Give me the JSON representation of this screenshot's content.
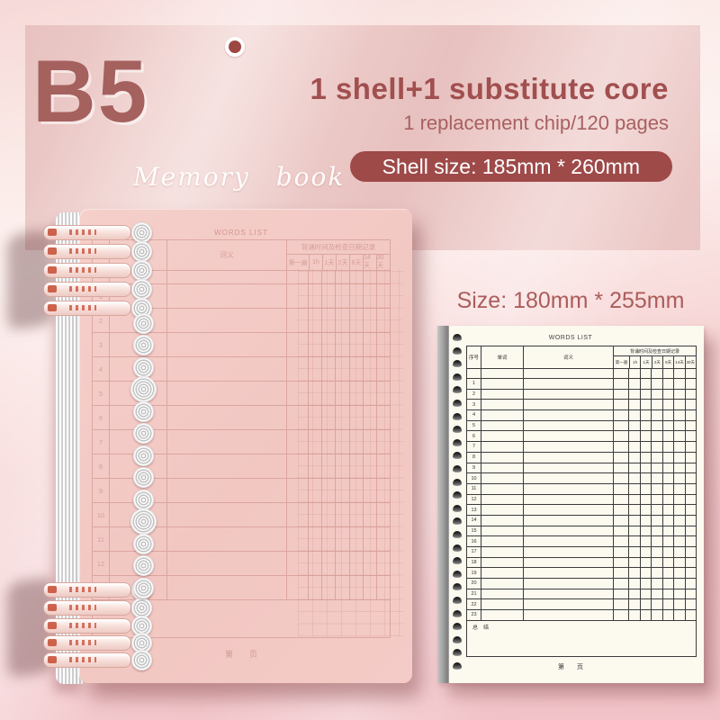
{
  "hero": {
    "size_label": "B5",
    "collection_label": "Memory book",
    "headline": "1 shell+1 substitute core",
    "subheadline": "1 replacement chip/120 pages",
    "shell_size_badge": "Shell size: 185mm * 260mm"
  },
  "core_sheet": {
    "size_caption": "Size: 180mm * 255mm"
  },
  "words_list": {
    "title": "WORDS LIST",
    "col_index": "序号",
    "col_word": "单词",
    "col_meaning": "词义",
    "review_group": "背诵时间及检查日期记录",
    "review_cols": [
      "第一遍",
      "1h",
      "1天",
      "2天",
      "6天",
      "14天",
      "30天"
    ],
    "row_numbers": [
      "1",
      "2",
      "3",
      "4",
      "5",
      "6",
      "7",
      "8",
      "9",
      "10",
      "11",
      "12",
      "13",
      "14",
      "15",
      "16",
      "17",
      "18",
      "19",
      "20",
      "21",
      "22",
      "23"
    ],
    "summary_label": "总　结",
    "footer_label": "第　　页"
  },
  "colors": {
    "accent_dark_red": "#a14f4f",
    "badge_bg": "#9e4a49",
    "badge_text": "#ffffff",
    "cover_pink": "#f3cac6",
    "page_cream": "#fcf9ef",
    "background_pink": "#f2c3c8"
  }
}
